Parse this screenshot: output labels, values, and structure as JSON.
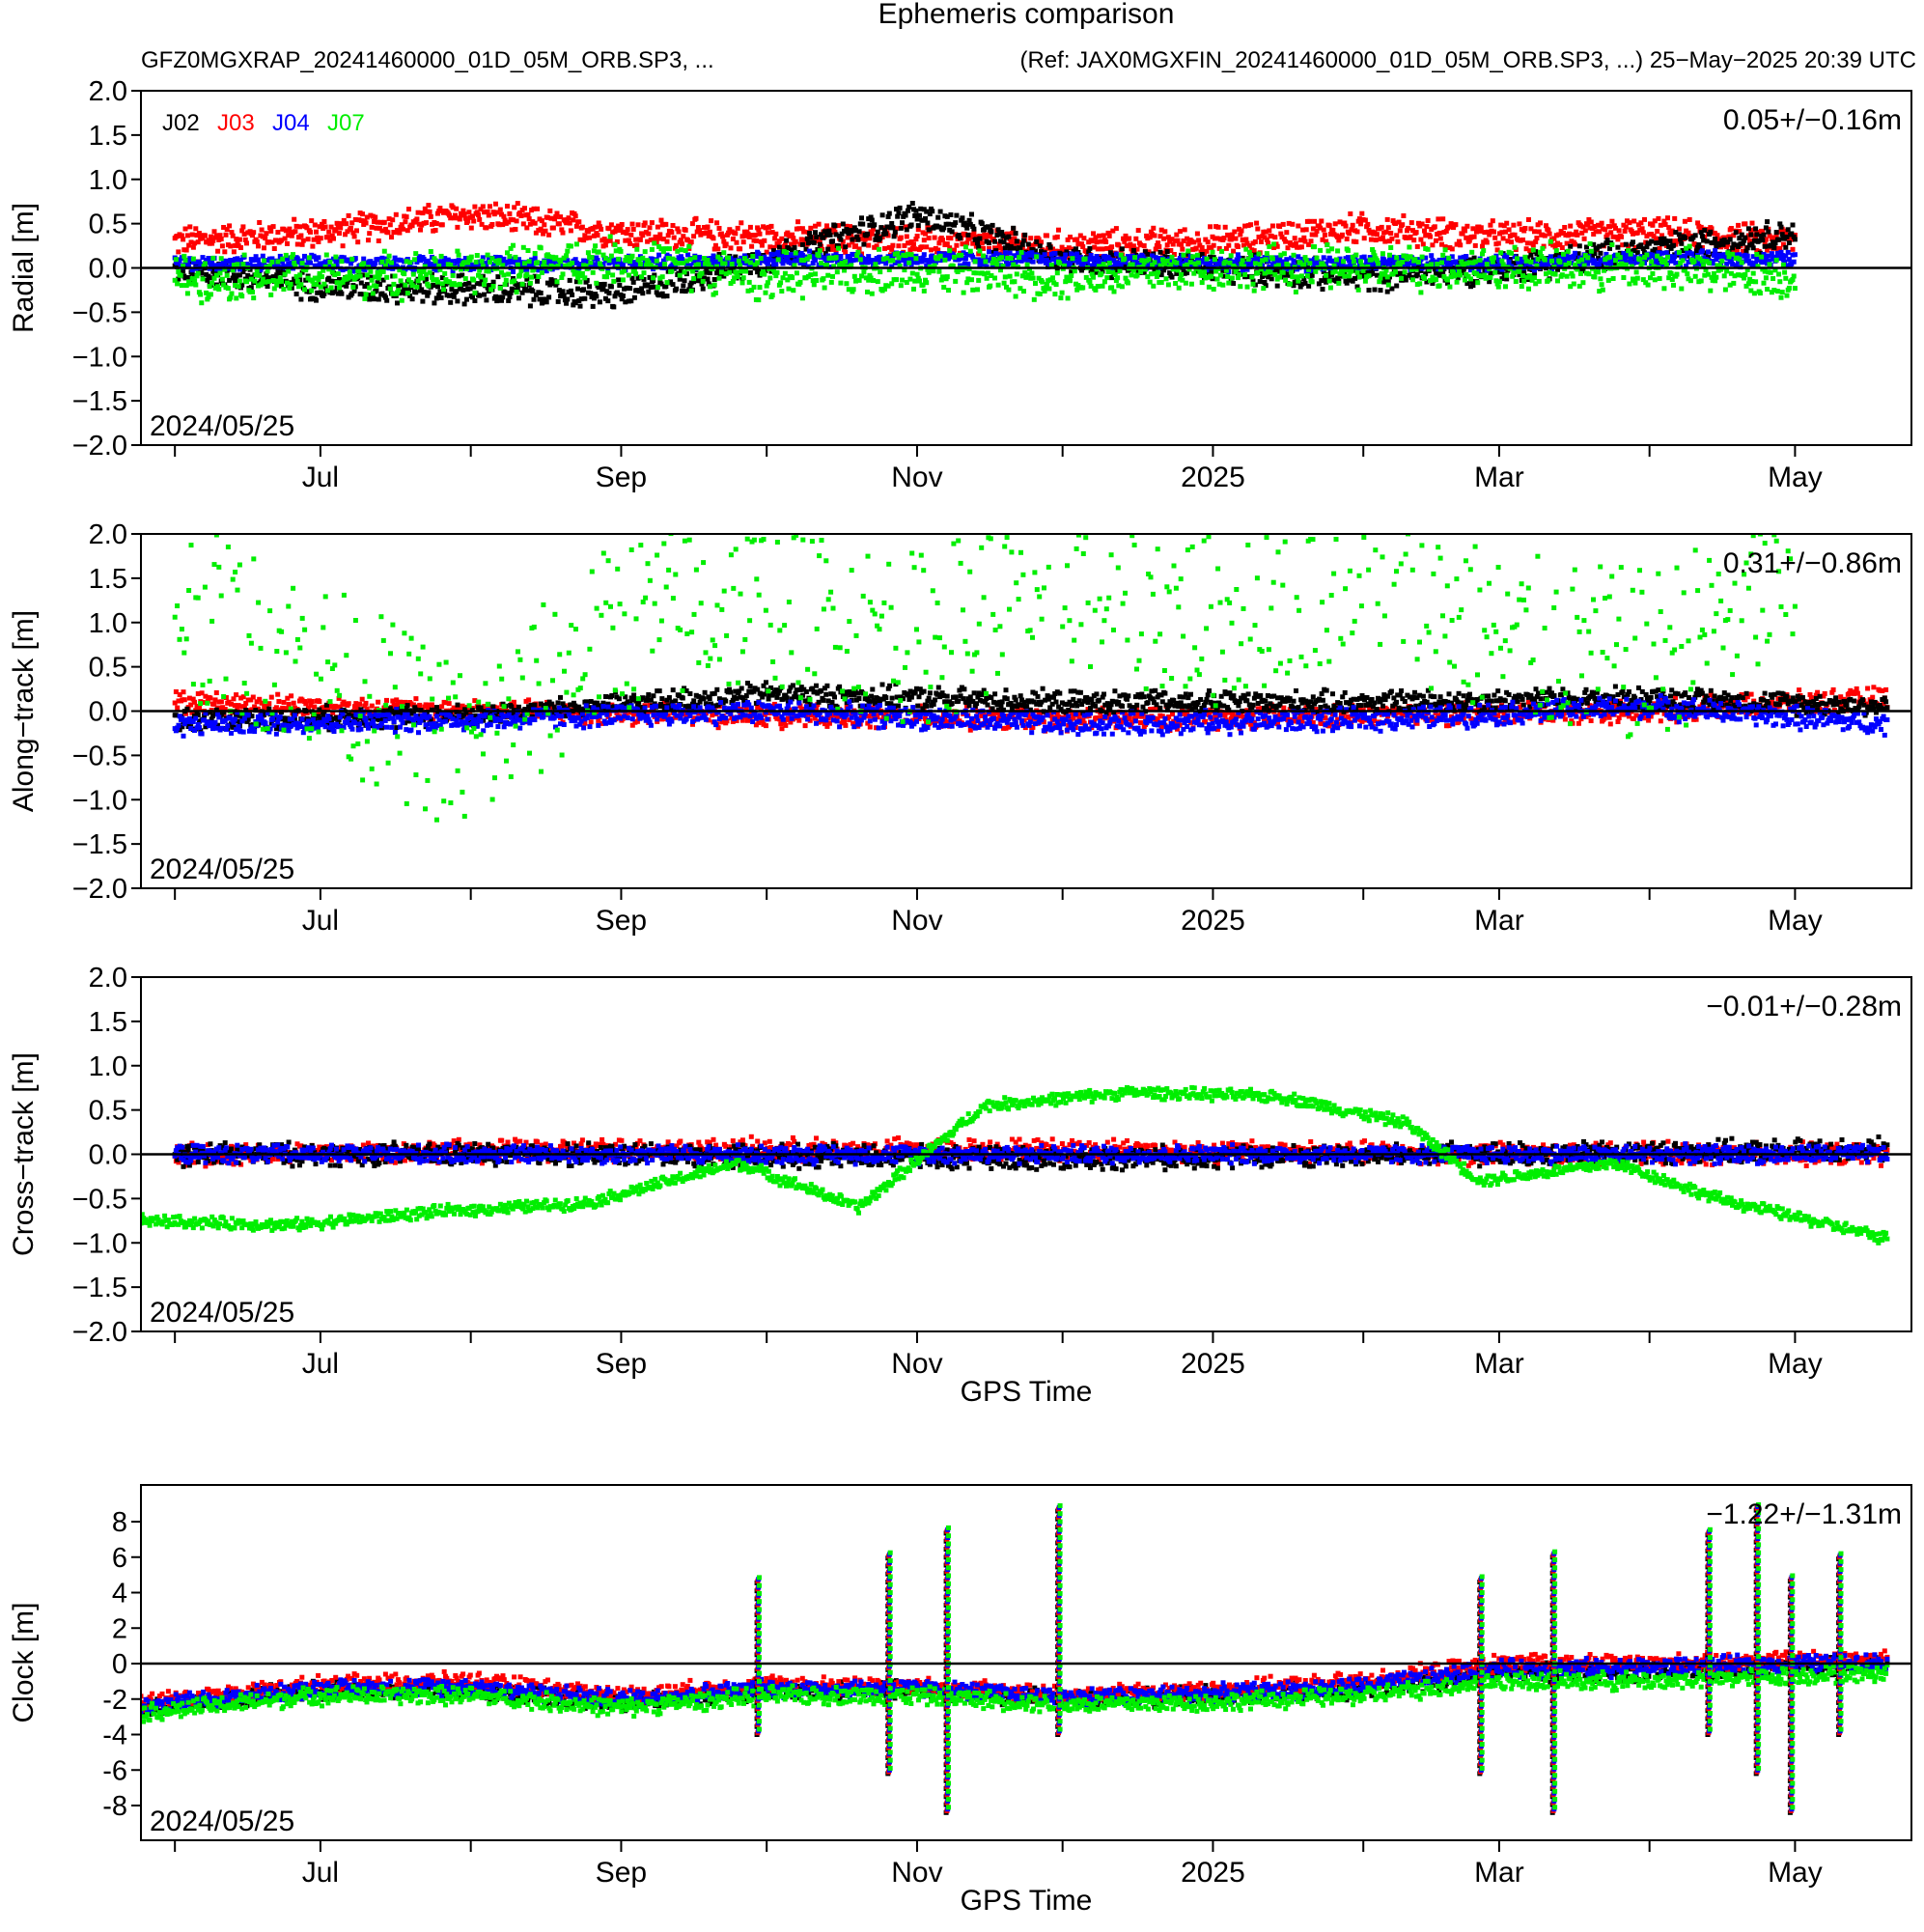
{
  "title": "Ephemeris comparison",
  "subtitle_left": "GFZ0MGXRAP_20241460000_01D_05M_ORB.SP3, ...",
  "subtitle_right": "(Ref: JAX0MGXFIN_20241460000_01D_05M_ORB.SP3, ...)  25−May−2025 20:39 UTC",
  "colors": {
    "J02": "#000000",
    "J03": "#ff0000",
    "J04": "#0000ff",
    "J07": "#00ee00"
  },
  "chart_data": [
    {
      "type": "scatter",
      "panel": "radial",
      "ylabel": "Radial [m]",
      "ylim": [
        -2.0,
        2.0
      ],
      "yticks": [
        2.0,
        1.5,
        1.0,
        0.5,
        0.0,
        -0.5,
        -1.0,
        -1.5,
        -2.0
      ],
      "ytick_labels": [
        "2.0",
        "1.5",
        "1.0",
        "0.5",
        "0.0",
        "−0.5",
        "−1.0",
        "−1.5",
        "−2.0"
      ],
      "x_labels": [
        "Jul",
        "Sep",
        "Nov",
        "2025",
        "Mar",
        "May"
      ],
      "xlim": [
        "2024-05-25",
        "2025-05-25"
      ],
      "date_label": "2024/05/25",
      "stat": "0.05+/−0.16m",
      "legend": [
        "J02",
        "J03",
        "J04",
        "J07"
      ],
      "legend_position": "top-left",
      "series": [
        {
          "name": "J02",
          "x": [
            "2024-06-01",
            "2024-07-01",
            "2024-08-01",
            "2024-09-01",
            "2024-10-01",
            "2024-11-01",
            "2024-12-01",
            "2025-01-01",
            "2025-02-01",
            "2025-03-01",
            "2025-04-01",
            "2025-05-01"
          ],
          "y": [
            0.0,
            -0.2,
            -0.25,
            -0.3,
            0.1,
            0.6,
            0.1,
            0.0,
            -0.1,
            0.0,
            0.2,
            0.4
          ],
          "spread": 0.2
        },
        {
          "name": "J03",
          "x": [
            "2024-06-01",
            "2024-07-01",
            "2024-08-01",
            "2024-09-01",
            "2024-10-01",
            "2024-11-01",
            "2024-12-01",
            "2025-01-01",
            "2025-02-01",
            "2025-03-01",
            "2025-04-01",
            "2025-05-01"
          ],
          "y": [
            0.3,
            0.4,
            0.6,
            0.4,
            0.35,
            0.3,
            0.25,
            0.3,
            0.45,
            0.35,
            0.4,
            0.3
          ],
          "spread": 0.2
        },
        {
          "name": "J04",
          "x": [
            "2024-06-01",
            "2024-07-01",
            "2024-08-01",
            "2024-09-01",
            "2024-10-01",
            "2024-11-01",
            "2024-12-01",
            "2025-01-01",
            "2025-02-01",
            "2025-03-01",
            "2025-04-01",
            "2025-05-01"
          ],
          "y": [
            0.05,
            0.05,
            0.05,
            0.05,
            0.1,
            0.1,
            0.1,
            0.05,
            0.05,
            0.05,
            0.1,
            0.1
          ],
          "spread": 0.1
        },
        {
          "name": "J07",
          "x": [
            "2024-06-01",
            "2024-07-01",
            "2024-08-01",
            "2024-09-01",
            "2024-10-01",
            "2024-11-01",
            "2024-12-01",
            "2025-01-01",
            "2025-02-01",
            "2025-03-01",
            "2025-04-01",
            "2025-05-01"
          ],
          "y": [
            -0.1,
            -0.1,
            -0.05,
            0.1,
            -0.1,
            0.0,
            -0.1,
            0.0,
            0.0,
            0.0,
            0.0,
            -0.1
          ],
          "spread": 0.3
        }
      ]
    },
    {
      "type": "scatter",
      "panel": "along-track",
      "ylabel": "Along−track [m]",
      "ylim": [
        -2.0,
        2.0
      ],
      "yticks": [
        2.0,
        1.5,
        1.0,
        0.5,
        0.0,
        -0.5,
        -1.0,
        -1.5,
        -2.0
      ],
      "ytick_labels": [
        "2.0",
        "1.5",
        "1.0",
        "0.5",
        "0.0",
        "−0.5",
        "−1.0",
        "−1.5",
        "−2.0"
      ],
      "x_labels": [
        "Jul",
        "Sep",
        "Nov",
        "2025",
        "Mar",
        "May"
      ],
      "xlim": [
        "2024-05-25",
        "2025-05-25"
      ],
      "date_label": "2024/05/25",
      "stat": "0.31+/−0.86m",
      "series": [
        {
          "name": "J02",
          "x": [
            "2024-06-01",
            "2024-08-01",
            "2024-10-01",
            "2024-12-01",
            "2025-02-01",
            "2025-04-01",
            "2025-05-20"
          ],
          "y": [
            -0.1,
            -0.05,
            0.2,
            0.1,
            0.1,
            0.15,
            0.05
          ],
          "spread": 0.15
        },
        {
          "name": "J03",
          "x": [
            "2024-06-01",
            "2024-08-01",
            "2024-10-01",
            "2024-12-01",
            "2025-02-01",
            "2025-04-01",
            "2025-05-20"
          ],
          "y": [
            0.1,
            0.0,
            -0.05,
            -0.1,
            -0.05,
            0.0,
            0.15
          ],
          "spread": 0.15
        },
        {
          "name": "J04",
          "x": [
            "2024-06-01",
            "2024-08-01",
            "2024-10-01",
            "2024-12-01",
            "2025-02-01",
            "2025-04-01",
            "2025-05-20"
          ],
          "y": [
            -0.15,
            -0.1,
            0.0,
            -0.15,
            -0.1,
            0.05,
            -0.15
          ],
          "spread": 0.15
        },
        {
          "name": "J07",
          "x": [
            "2024-06-01",
            "2024-07-01",
            "2024-08-01",
            "2024-09-01",
            "2024-10-01",
            "2024-11-01",
            "2024-12-01",
            "2025-01-01",
            "2025-02-01",
            "2025-03-01",
            "2025-04-01",
            "2025-05-01"
          ],
          "y": [
            1.2,
            0.5,
            -0.5,
            1.0,
            1.2,
            0.8,
            1.5,
            1.0,
            1.7,
            0.8,
            0.6,
            1.5
          ],
          "spread": 1.0
        }
      ]
    },
    {
      "type": "scatter",
      "panel": "cross-track",
      "ylabel": "Cross−track [m]",
      "ylim": [
        -2.0,
        2.0
      ],
      "yticks": [
        2.0,
        1.5,
        1.0,
        0.5,
        0.0,
        -0.5,
        -1.0,
        -1.5,
        -2.0
      ],
      "ytick_labels": [
        "2.0",
        "1.5",
        "1.0",
        "0.5",
        "0.0",
        "−0.5",
        "−1.0",
        "−1.5",
        "−2.0"
      ],
      "x_labels": [
        "Jul",
        "Sep",
        "Nov",
        "2025",
        "Mar",
        "May"
      ],
      "xlim": [
        "2024-05-25",
        "2025-05-25"
      ],
      "date_label": "2024/05/25",
      "stat": "−0.01+/−0.28m",
      "xlabel": "GPS Time",
      "series": [
        {
          "name": "J02",
          "x": [
            "2024-06-01",
            "2024-09-01",
            "2024-12-01",
            "2025-03-01",
            "2025-05-20"
          ],
          "y": [
            0.0,
            0.0,
            -0.05,
            0.0,
            0.05
          ],
          "spread": 0.15
        },
        {
          "name": "J03",
          "x": [
            "2024-06-01",
            "2024-09-01",
            "2024-12-01",
            "2025-03-01",
            "2025-05-20"
          ],
          "y": [
            0.0,
            0.05,
            0.05,
            0.0,
            0.0
          ],
          "spread": 0.15
        },
        {
          "name": "J04",
          "x": [
            "2024-06-01",
            "2024-09-01",
            "2024-12-01",
            "2025-03-01",
            "2025-05-20"
          ],
          "y": [
            0.0,
            0.0,
            0.0,
            0.0,
            0.0
          ],
          "spread": 0.12
        },
        {
          "name": "J07",
          "x": [
            "2024-05-25",
            "2024-06-25",
            "2024-07-25",
            "2024-08-25",
            "2024-09-25",
            "2024-10-20",
            "2024-11-15",
            "2024-12-15",
            "2025-01-15",
            "2025-02-10",
            "2025-02-25",
            "2025-03-25",
            "2025-04-15",
            "2025-05-20"
          ],
          "y": [
            -0.75,
            -0.8,
            -0.65,
            -0.55,
            -0.1,
            -0.6,
            0.55,
            0.7,
            0.65,
            0.35,
            -0.3,
            -0.1,
            -0.5,
            -0.95
          ],
          "spread": 0.08
        }
      ]
    },
    {
      "type": "scatter",
      "panel": "clock",
      "ylabel": "Clock [m]",
      "ylim": [
        -10,
        10
      ],
      "yticks": [
        8,
        6,
        4,
        2,
        0,
        -2,
        -4,
        -6,
        -8
      ],
      "ytick_labels": [
        "8",
        "6",
        "4",
        "2",
        "0",
        "-2",
        "-4",
        "-6",
        "-8"
      ],
      "x_labels": [
        "Jul",
        "Sep",
        "Nov",
        "2025",
        "Mar",
        "May"
      ],
      "xlim": [
        "2024-05-25",
        "2025-05-25"
      ],
      "date_label": "2024/05/25",
      "stat": "−1.22+/−1.31m",
      "xlabel": "GPS Time",
      "spikes": [
        "2024-09-29",
        "2024-10-26",
        "2024-11-07",
        "2024-11-30",
        "2025-02-25",
        "2025-03-12",
        "2025-04-13",
        "2025-04-23",
        "2025-04-30",
        "2025-05-10"
      ],
      "series": [
        {
          "name": "J02",
          "x": [
            "2024-05-25",
            "2024-07-01",
            "2024-08-01",
            "2024-09-01",
            "2024-10-01",
            "2024-11-01",
            "2024-12-01",
            "2025-01-01",
            "2025-02-01",
            "2025-03-01",
            "2025-04-01",
            "2025-05-20"
          ],
          "y": [
            -2.5,
            -1.5,
            -1.5,
            -2.2,
            -1.5,
            -1.5,
            -2.0,
            -1.8,
            -1.5,
            -0.5,
            -0.5,
            0.0
          ],
          "spread": 0.6
        },
        {
          "name": "J03",
          "x": [
            "2024-05-25",
            "2024-07-01",
            "2024-08-01",
            "2024-09-01",
            "2024-10-01",
            "2024-11-01",
            "2024-12-01",
            "2025-01-01",
            "2025-02-01",
            "2025-03-01",
            "2025-04-01",
            "2025-05-20"
          ],
          "y": [
            -2.2,
            -1.2,
            -1.0,
            -1.8,
            -1.2,
            -1.3,
            -1.8,
            -1.5,
            -1.0,
            0.0,
            0.0,
            0.3
          ],
          "spread": 0.6
        },
        {
          "name": "J04",
          "x": [
            "2024-05-25",
            "2024-07-01",
            "2024-08-01",
            "2024-09-01",
            "2024-10-01",
            "2024-11-01",
            "2024-12-01",
            "2025-01-01",
            "2025-02-01",
            "2025-03-01",
            "2025-04-01",
            "2025-05-20"
          ],
          "y": [
            -2.4,
            -1.4,
            -1.3,
            -2.0,
            -1.4,
            -1.4,
            -1.9,
            -1.7,
            -1.3,
            -0.3,
            -0.2,
            0.1
          ],
          "spread": 0.6
        },
        {
          "name": "J07",
          "x": [
            "2024-05-25",
            "2024-07-01",
            "2024-08-01",
            "2024-09-01",
            "2024-10-01",
            "2024-11-01",
            "2024-12-01",
            "2025-01-01",
            "2025-02-01",
            "2025-03-01",
            "2025-04-01",
            "2025-05-20"
          ],
          "y": [
            -2.8,
            -1.8,
            -1.8,
            -2.5,
            -1.8,
            -1.8,
            -2.3,
            -2.2,
            -1.8,
            -1.0,
            -1.0,
            -0.5
          ],
          "spread": 0.6
        }
      ]
    }
  ]
}
